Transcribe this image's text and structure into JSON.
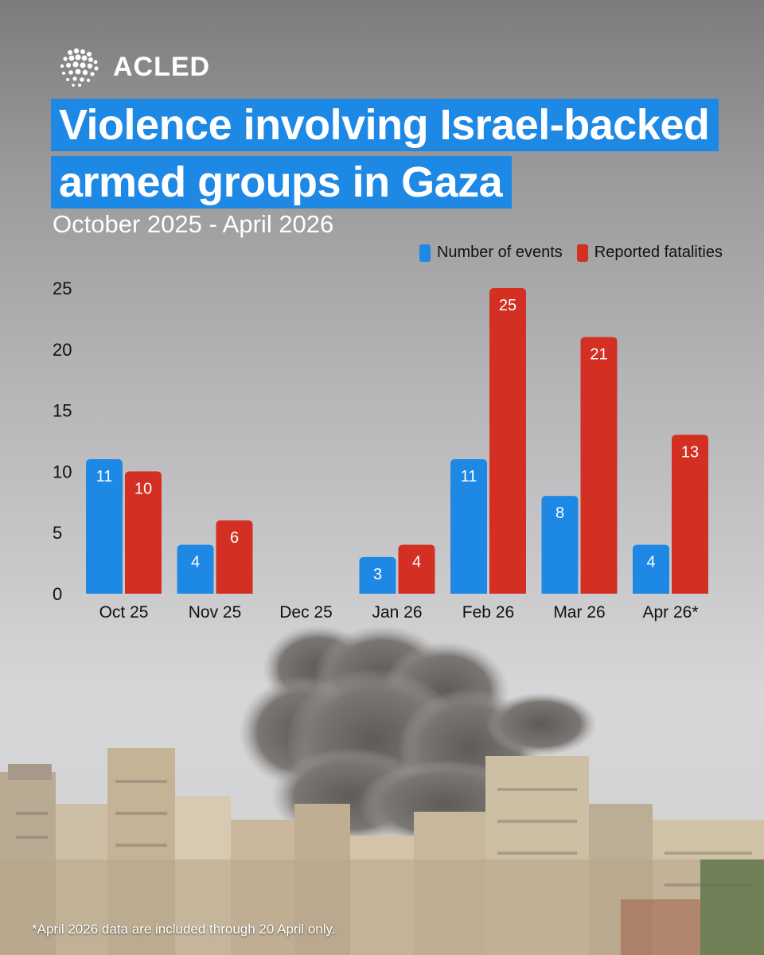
{
  "brand": {
    "name": "ACLED",
    "logo_icon": "globe-dots-icon"
  },
  "title_lines": [
    "Violence involving Israel-backed",
    "armed groups in Gaza"
  ],
  "subtitle": "October 2025 - April 2026",
  "footnote": "*April 2026 data are included through 20 April only.",
  "colors": {
    "events": "#1e88e5",
    "fatalities": "#d32f22",
    "title_bg": "#1e88e5"
  },
  "chart_data": {
    "type": "bar",
    "categories": [
      "Oct 25",
      "Nov 25",
      "Dec 25",
      "Jan 26",
      "Feb 26",
      "Mar 26",
      "Apr 26*"
    ],
    "series": [
      {
        "name": "Number of events",
        "values": [
          11,
          4,
          0,
          3,
          11,
          8,
          4
        ]
      },
      {
        "name": "Reported fatalities",
        "values": [
          10,
          6,
          0,
          4,
          25,
          21,
          13
        ]
      }
    ],
    "ylim": [
      0,
      25
    ],
    "yticks": [
      0,
      5,
      10,
      15,
      20,
      25
    ],
    "legend": "top-right",
    "grid": false
  }
}
